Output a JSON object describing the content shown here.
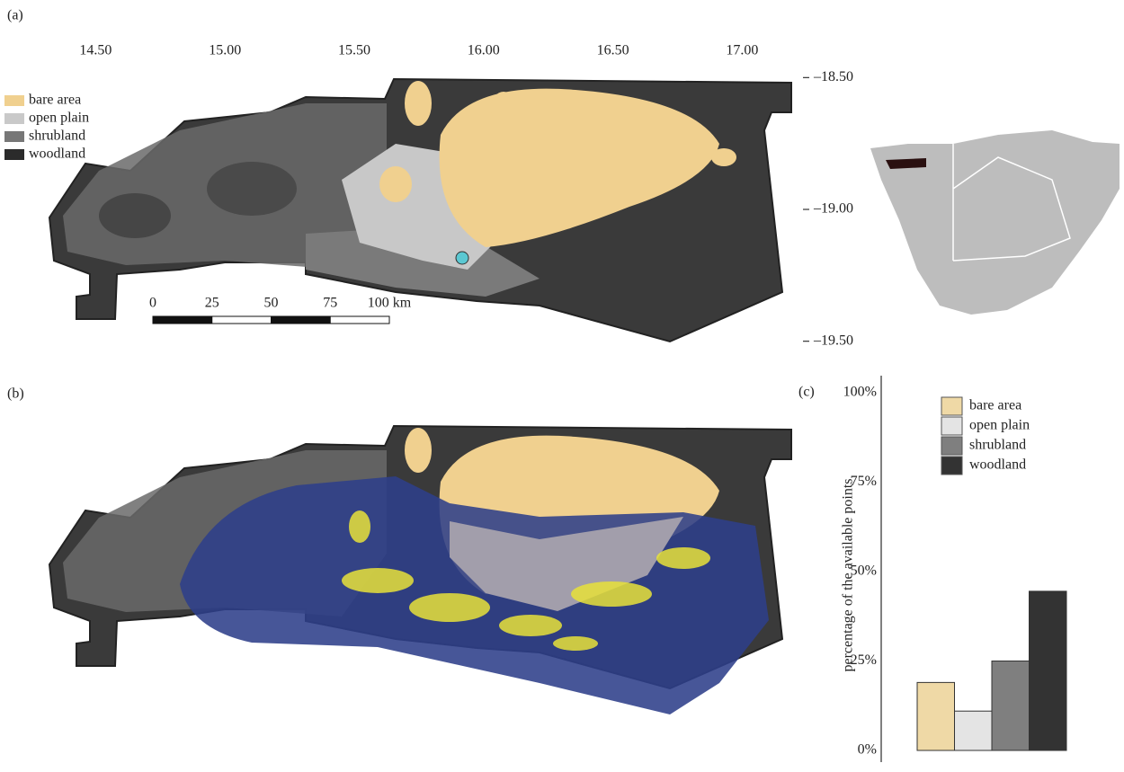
{
  "panel_labels": [
    "(a)",
    "(b)",
    "(c)"
  ],
  "map": {
    "xlim": [
      14.13,
      17.19
    ],
    "xticks": [
      {
        "value": 14.5,
        "label": "14.50"
      },
      {
        "value": 15,
        "label": "15.00"
      },
      {
        "value": 15.5,
        "label": "15.50"
      },
      {
        "value": 16,
        "label": "16.00"
      },
      {
        "value": 16.5,
        "label": "16.50"
      },
      {
        "value": 17,
        "label": "17.00"
      }
    ],
    "ylim": [
      -19.6,
      -18.4
    ],
    "yticks": [
      {
        "value": -18.5,
        "label": "–18.50"
      },
      {
        "value": -19,
        "label": "–19.00"
      },
      {
        "value": -19.5,
        "label": "–19.50"
      }
    ],
    "legend": [
      "bare area",
      "open plain",
      "shrubland",
      "woodland"
    ],
    "legend_colors": [
      "#f0d08f",
      "#c9c9c9",
      "#777777",
      "#2b2b2b"
    ],
    "scale_bar": [
      0,
      25,
      50,
      75,
      {
        "value": 100,
        "label": "100 km"
      }
    ]
  },
  "chart_data": {
    "type": "bar",
    "ylabel": "percentage of the available points",
    "categories": [
      "bare area",
      "open plain",
      "shrubland",
      "woodland"
    ],
    "values": [
      19,
      11,
      25,
      44.5
    ],
    "colors": [
      "#efd9a6",
      "#e4e4e4",
      "#7f7f7f",
      "#333333"
    ],
    "ylim": [
      0,
      100
    ],
    "yticks": [
      {
        "value": 0,
        "label": "0%"
      },
      {
        "value": 25,
        "label": "25%"
      },
      {
        "value": 50,
        "label": "50%"
      },
      {
        "value": 75,
        "label": "75%"
      },
      {
        "value": 100,
        "label": "100%"
      }
    ]
  }
}
